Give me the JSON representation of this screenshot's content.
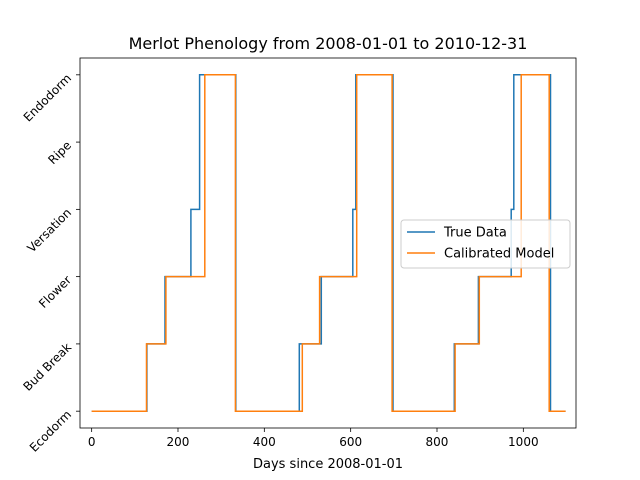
{
  "chart_data": {
    "type": "line",
    "title": "Merlot Phenology from 2008-01-01 to 2010-12-31",
    "xlabel": "Days since 2008-01-01",
    "ylabel": "",
    "xlim": [
      -27,
      1122
    ],
    "ylim": [
      -0.25,
      5.25
    ],
    "x_ticks": [
      0,
      200,
      400,
      600,
      800,
      1000
    ],
    "y_ticks": [
      {
        "value": 0,
        "label": "Ecodorm"
      },
      {
        "value": 1,
        "label": "Bud Break"
      },
      {
        "value": 2,
        "label": "Flower"
      },
      {
        "value": 3,
        "label": "Versation"
      },
      {
        "value": 4,
        "label": "Ripe"
      },
      {
        "value": 5,
        "label": "Endodorm"
      }
    ],
    "legend_position": "center-right",
    "grid": false,
    "series": [
      {
        "name": "True Data",
        "color": "#1f77b4",
        "x": [
          0,
          128,
          128,
          170,
          170,
          230,
          230,
          250,
          250,
          334,
          334,
          481,
          481,
          532,
          532,
          605,
          605,
          612,
          612,
          698,
          698,
          840,
          840,
          896,
          896,
          972,
          972,
          978,
          978,
          1063,
          1063,
          1098
        ],
        "y": [
          0,
          0,
          1,
          1,
          2,
          2,
          3,
          3,
          5,
          5,
          0,
          0,
          1,
          1,
          2,
          2,
          3,
          3,
          5,
          5,
          0,
          0,
          1,
          1,
          2,
          2,
          3,
          3,
          5,
          5,
          0,
          0
        ]
      },
      {
        "name": "Calibrated Model",
        "color": "#ff7f0e",
        "x": [
          0,
          127,
          127,
          172,
          172,
          262,
          262,
          333,
          333,
          488,
          488,
          528,
          528,
          614,
          614,
          696,
          696,
          842,
          842,
          898,
          898,
          995,
          995,
          1060,
          1060,
          1098
        ],
        "y": [
          0,
          0,
          1,
          1,
          2,
          2,
          5,
          5,
          0,
          0,
          1,
          1,
          2,
          2,
          5,
          5,
          0,
          0,
          1,
          1,
          2,
          2,
          5,
          5,
          0,
          0
        ]
      }
    ]
  }
}
